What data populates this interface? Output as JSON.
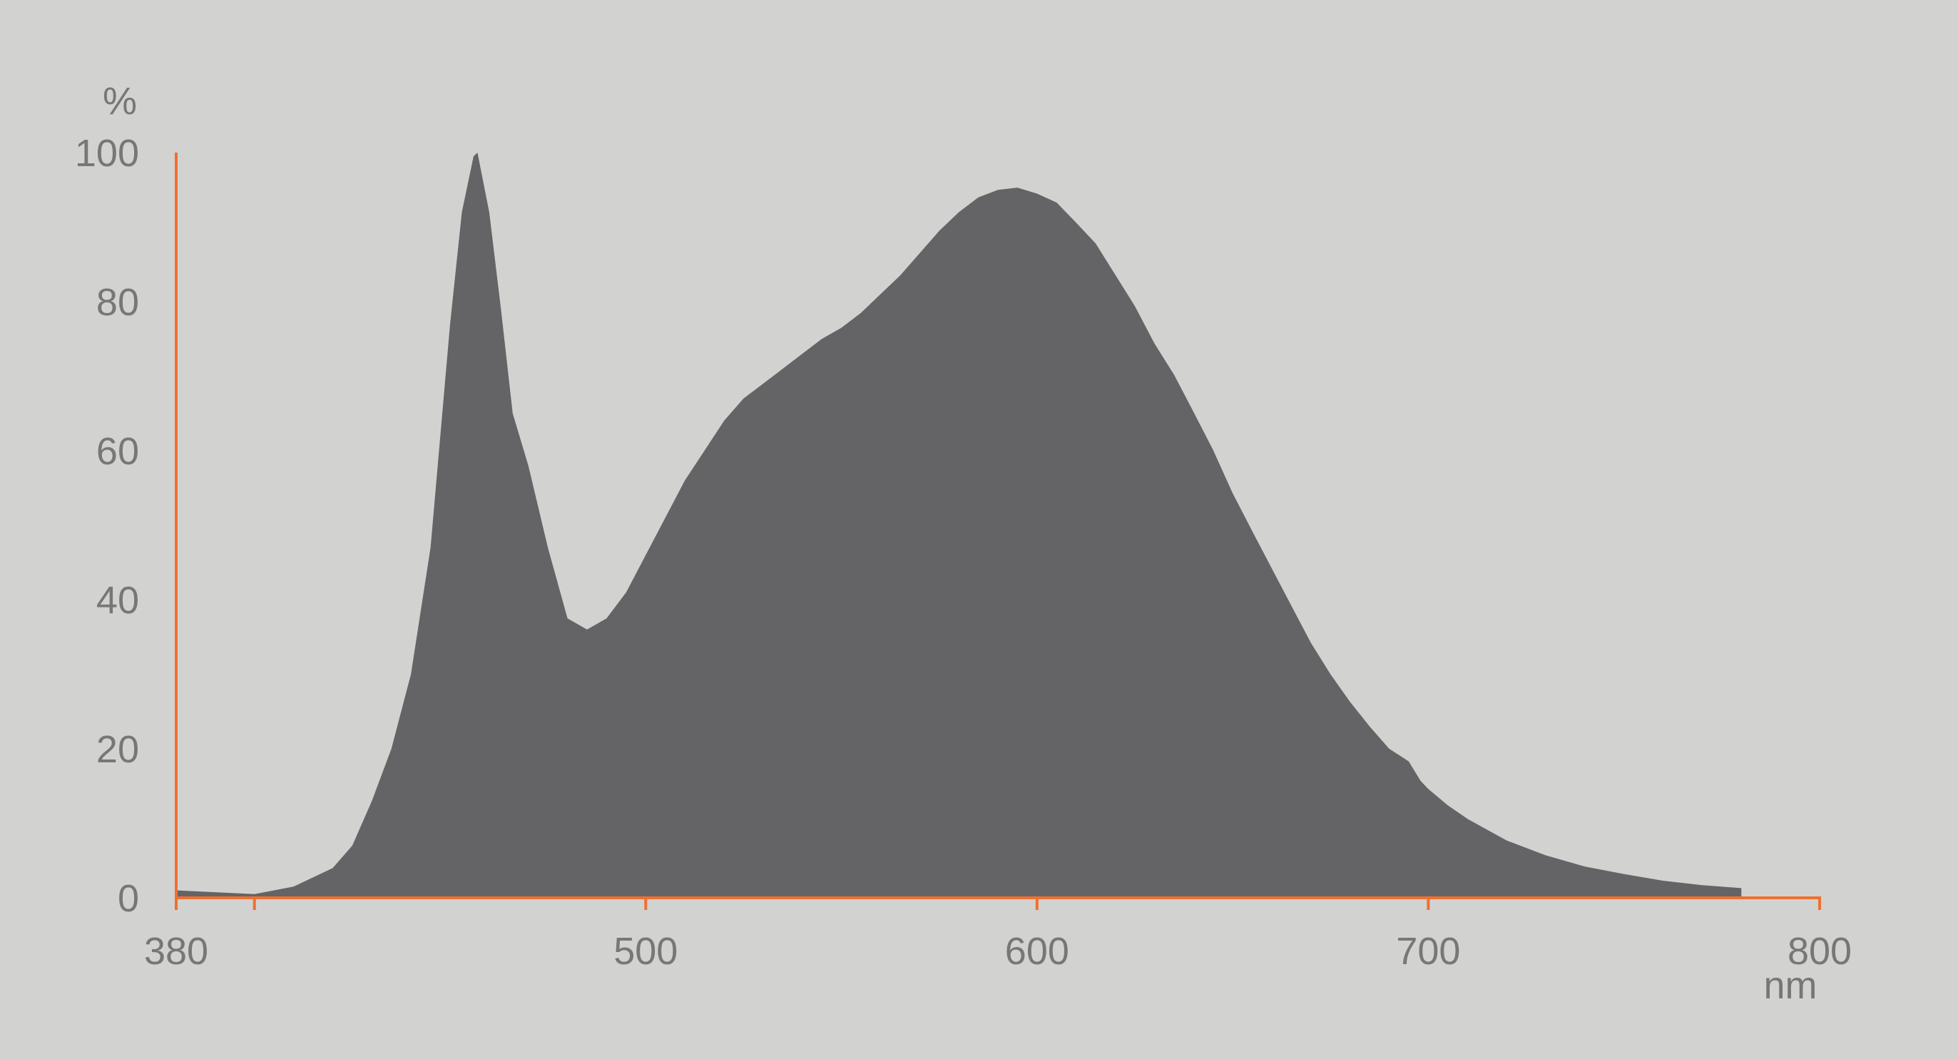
{
  "chart_data": {
    "type": "area",
    "title": "",
    "xlabel": "nm",
    "ylabel": "%",
    "xlim": [
      380,
      800
    ],
    "ylim": [
      0,
      100
    ],
    "x_ticks": [
      380,
      400,
      500,
      600,
      700,
      800
    ],
    "x_tick_labels": [
      "380",
      "",
      "500",
      "600",
      "700",
      "800"
    ],
    "y_ticks": [
      0,
      20,
      40,
      60,
      80,
      100
    ],
    "y_tick_labels": [
      "0",
      "20",
      "40",
      "60",
      "80",
      "100"
    ],
    "grid": false,
    "colors": {
      "background": "#d2d2d0",
      "fill": "#646466",
      "axis": "#f07030",
      "text": "#777777"
    },
    "x": [
      380,
      400,
      410,
      420,
      425,
      430,
      435,
      440,
      445,
      450,
      453,
      456,
      457,
      460,
      463,
      466,
      470,
      475,
      480,
      485,
      490,
      495,
      500,
      505,
      510,
      515,
      520,
      525,
      530,
      535,
      540,
      545,
      550,
      555,
      560,
      565,
      570,
      575,
      580,
      585,
      590,
      595,
      600,
      605,
      610,
      615,
      620,
      625,
      630,
      635,
      640,
      645,
      650,
      655,
      660,
      665,
      670,
      675,
      680,
      685,
      690,
      693,
      695,
      698,
      700,
      705,
      710,
      720,
      730,
      740,
      750,
      760,
      770,
      780
    ],
    "y": [
      1,
      0.5,
      1.5,
      4,
      7,
      13,
      20,
      30,
      47,
      77,
      92,
      99.5,
      100,
      92,
      79,
      65,
      58,
      47,
      37.5,
      36,
      37.5,
      41,
      46,
      51,
      56,
      60,
      64,
      67,
      69,
      71,
      73,
      75,
      76.5,
      78.5,
      81,
      83.5,
      86.5,
      89.5,
      92,
      94,
      95,
      95.3,
      94.5,
      93.3,
      90.6,
      87.8,
      83.6,
      79.4,
      74.4,
      70.2,
      65.2,
      60.1,
      54.3,
      49.2,
      44.2,
      39.2,
      34.2,
      30,
      26.3,
      23,
      20,
      19,
      18.3,
      15.7,
      14.6,
      12.4,
      10.6,
      7.7,
      5.7,
      4.2,
      3.2,
      2.3,
      1.7,
      1.3
    ]
  }
}
